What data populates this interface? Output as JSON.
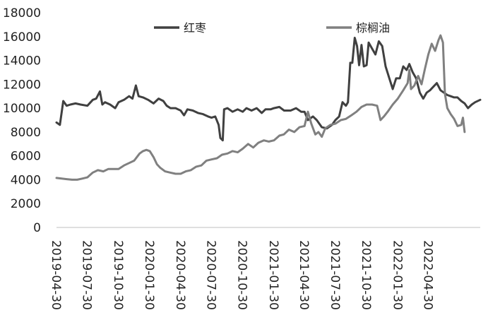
{
  "chart_data": {
    "type": "line",
    "title": "",
    "xlabel": "",
    "ylabel": "",
    "ylim": [
      0,
      18000
    ],
    "yticks": [
      "0",
      "2000",
      "4000",
      "6000",
      "8000",
      "10000",
      "12000",
      "14000",
      "16000",
      "18000"
    ],
    "xlim": [
      "2019-04-30",
      "2022-09-30"
    ],
    "xticks": [
      "2019-04-30",
      "2019-07-30",
      "2019-10-30",
      "2020-01-30",
      "2020-04-30",
      "2020-07-30",
      "2020-10-30",
      "2021-01-30",
      "2021-04-30",
      "2021-07-30",
      "2021-10-30",
      "2022-01-30",
      "2022-04-30"
    ],
    "grid": false,
    "legend": "top",
    "series": [
      {
        "name": "红枣",
        "color": "#404040",
        "points": [
          [
            "2019-04-30",
            8800
          ],
          [
            "2019-05-10",
            8600
          ],
          [
            "2019-05-20",
            10600
          ],
          [
            "2019-05-30",
            10200
          ],
          [
            "2019-06-10",
            10300
          ],
          [
            "2019-06-25",
            10400
          ],
          [
            "2019-07-10",
            10300
          ],
          [
            "2019-07-30",
            10200
          ],
          [
            "2019-08-15",
            10700
          ],
          [
            "2019-08-25",
            10800
          ],
          [
            "2019-09-05",
            11400
          ],
          [
            "2019-09-12",
            10300
          ],
          [
            "2019-09-20",
            10500
          ],
          [
            "2019-10-05",
            10300
          ],
          [
            "2019-10-20",
            10000
          ],
          [
            "2019-10-30",
            10500
          ],
          [
            "2019-11-15",
            10700
          ],
          [
            "2019-11-30",
            11000
          ],
          [
            "2019-12-10",
            10800
          ],
          [
            "2019-12-20",
            11900
          ],
          [
            "2019-12-28",
            11000
          ],
          [
            "2020-01-10",
            10900
          ],
          [
            "2020-01-25",
            10700
          ],
          [
            "2020-02-10",
            10400
          ],
          [
            "2020-02-25",
            10800
          ],
          [
            "2020-03-10",
            10600
          ],
          [
            "2020-03-20",
            10200
          ],
          [
            "2020-03-31",
            10000
          ],
          [
            "2020-04-15",
            10000
          ],
          [
            "2020-04-30",
            9800
          ],
          [
            "2020-05-10",
            9400
          ],
          [
            "2020-05-20",
            9900
          ],
          [
            "2020-06-05",
            9800
          ],
          [
            "2020-06-20",
            9600
          ],
          [
            "2020-07-05",
            9500
          ],
          [
            "2020-07-20",
            9300
          ],
          [
            "2020-07-30",
            9200
          ],
          [
            "2020-08-10",
            9300
          ],
          [
            "2020-08-20",
            8600
          ],
          [
            "2020-08-25",
            7500
          ],
          [
            "2020-09-01",
            7300
          ],
          [
            "2020-09-05",
            9900
          ],
          [
            "2020-09-15",
            10000
          ],
          [
            "2020-09-30",
            9700
          ],
          [
            "2020-10-15",
            9900
          ],
          [
            "2020-10-30",
            9700
          ],
          [
            "2020-11-10",
            10000
          ],
          [
            "2020-11-25",
            9800
          ],
          [
            "2020-12-10",
            10000
          ],
          [
            "2020-12-25",
            9600
          ],
          [
            "2021-01-05",
            9900
          ],
          [
            "2021-01-20",
            9900
          ],
          [
            "2021-01-30",
            10000
          ],
          [
            "2021-02-15",
            10100
          ],
          [
            "2021-03-01",
            9800
          ],
          [
            "2021-03-20",
            9800
          ],
          [
            "2021-04-05",
            10000
          ],
          [
            "2021-04-20",
            9700
          ],
          [
            "2021-04-30",
            9700
          ],
          [
            "2021-05-10",
            9000
          ],
          [
            "2021-05-25",
            9300
          ],
          [
            "2021-06-05",
            9000
          ],
          [
            "2021-06-20",
            8400
          ],
          [
            "2021-07-05",
            8300
          ],
          [
            "2021-07-20",
            8600
          ],
          [
            "2021-07-30",
            9000
          ],
          [
            "2021-08-10",
            9300
          ],
          [
            "2021-08-20",
            10500
          ],
          [
            "2021-08-30",
            10200
          ],
          [
            "2021-09-05",
            10500
          ],
          [
            "2021-09-12",
            13800
          ],
          [
            "2021-09-18",
            13800
          ],
          [
            "2021-09-25",
            15900
          ],
          [
            "2021-10-02",
            15200
          ],
          [
            "2021-10-08",
            13600
          ],
          [
            "2021-10-15",
            15300
          ],
          [
            "2021-10-22",
            13500
          ],
          [
            "2021-10-30",
            13600
          ],
          [
            "2021-11-05",
            15500
          ],
          [
            "2021-11-15",
            15000
          ],
          [
            "2021-11-25",
            14500
          ],
          [
            "2021-12-05",
            15600
          ],
          [
            "2021-12-15",
            15200
          ],
          [
            "2021-12-25",
            13500
          ],
          [
            "2022-01-05",
            12500
          ],
          [
            "2022-01-15",
            11600
          ],
          [
            "2022-01-25",
            12500
          ],
          [
            "2022-02-05",
            12500
          ],
          [
            "2022-02-15",
            13500
          ],
          [
            "2022-02-25",
            13200
          ],
          [
            "2022-03-05",
            13700
          ],
          [
            "2022-03-15",
            13000
          ],
          [
            "2022-03-25",
            12500
          ],
          [
            "2022-04-05",
            11300
          ],
          [
            "2022-04-15",
            10800
          ],
          [
            "2022-04-25",
            11300
          ],
          [
            "2022-05-05",
            11500
          ],
          [
            "2022-05-15",
            11800
          ],
          [
            "2022-05-25",
            12100
          ],
          [
            "2022-06-05",
            11500
          ],
          [
            "2022-06-15",
            11300
          ],
          [
            "2022-06-25",
            11100
          ],
          [
            "2022-07-05",
            11000
          ],
          [
            "2022-07-15",
            10900
          ],
          [
            "2022-07-25",
            10900
          ],
          [
            "2022-08-05",
            10600
          ],
          [
            "2022-08-15",
            10400
          ],
          [
            "2022-08-25",
            10000
          ],
          [
            "2022-09-05",
            10300
          ],
          [
            "2022-09-15",
            10500
          ],
          [
            "2022-09-30",
            10700
          ]
        ]
      },
      {
        "name": "棕榈油",
        "color": "#808080",
        "points": [
          [
            "2019-04-30",
            4150
          ],
          [
            "2019-05-15",
            4100
          ],
          [
            "2019-05-30",
            4050
          ],
          [
            "2019-06-15",
            4000
          ],
          [
            "2019-06-30",
            4000
          ],
          [
            "2019-07-15",
            4100
          ],
          [
            "2019-07-30",
            4200
          ],
          [
            "2019-08-15",
            4600
          ],
          [
            "2019-08-30",
            4800
          ],
          [
            "2019-09-15",
            4700
          ],
          [
            "2019-09-30",
            4900
          ],
          [
            "2019-10-15",
            4900
          ],
          [
            "2019-10-30",
            4900
          ],
          [
            "2019-11-15",
            5200
          ],
          [
            "2019-11-30",
            5400
          ],
          [
            "2019-12-15",
            5600
          ],
          [
            "2019-12-31",
            6200
          ],
          [
            "2020-01-10",
            6400
          ],
          [
            "2020-01-20",
            6500
          ],
          [
            "2020-01-30",
            6400
          ],
          [
            "2020-02-10",
            5900
          ],
          [
            "2020-02-20",
            5300
          ],
          [
            "2020-03-01",
            5000
          ],
          [
            "2020-03-15",
            4700
          ],
          [
            "2020-03-30",
            4600
          ],
          [
            "2020-04-15",
            4500
          ],
          [
            "2020-04-30",
            4500
          ],
          [
            "2020-05-15",
            4700
          ],
          [
            "2020-05-30",
            4800
          ],
          [
            "2020-06-15",
            5100
          ],
          [
            "2020-06-30",
            5200
          ],
          [
            "2020-07-15",
            5600
          ],
          [
            "2020-07-30",
            5700
          ],
          [
            "2020-08-15",
            5800
          ],
          [
            "2020-08-30",
            6100
          ],
          [
            "2020-09-15",
            6200
          ],
          [
            "2020-09-30",
            6400
          ],
          [
            "2020-10-15",
            6300
          ],
          [
            "2020-10-30",
            6600
          ],
          [
            "2020-11-15",
            7000
          ],
          [
            "2020-11-30",
            6700
          ],
          [
            "2020-12-15",
            7100
          ],
          [
            "2020-12-31",
            7300
          ],
          [
            "2021-01-15",
            7200
          ],
          [
            "2021-01-30",
            7300
          ],
          [
            "2021-02-15",
            7700
          ],
          [
            "2021-02-28",
            7800
          ],
          [
            "2021-03-15",
            8200
          ],
          [
            "2021-03-31",
            8000
          ],
          [
            "2021-04-15",
            8400
          ],
          [
            "2021-04-30",
            8500
          ],
          [
            "2021-05-10",
            9700
          ],
          [
            "2021-05-20",
            8700
          ],
          [
            "2021-06-01",
            7800
          ],
          [
            "2021-06-10",
            8000
          ],
          [
            "2021-06-20",
            7600
          ],
          [
            "2021-06-30",
            8300
          ],
          [
            "2021-07-15",
            8600
          ],
          [
            "2021-07-30",
            8700
          ],
          [
            "2021-08-15",
            9000
          ],
          [
            "2021-08-30",
            9100
          ],
          [
            "2021-09-15",
            9400
          ],
          [
            "2021-09-30",
            9700
          ],
          [
            "2021-10-15",
            10100
          ],
          [
            "2021-10-30",
            10300
          ],
          [
            "2021-11-15",
            10300
          ],
          [
            "2021-11-30",
            10200
          ],
          [
            "2021-12-10",
            9000
          ],
          [
            "2021-12-20",
            9300
          ],
          [
            "2021-12-31",
            9700
          ],
          [
            "2022-01-15",
            10300
          ],
          [
            "2022-01-30",
            10800
          ],
          [
            "2022-02-15",
            11500
          ],
          [
            "2022-02-28",
            12100
          ],
          [
            "2022-03-05",
            13200
          ],
          [
            "2022-03-10",
            11600
          ],
          [
            "2022-03-20",
            11900
          ],
          [
            "2022-03-31",
            12700
          ],
          [
            "2022-04-10",
            12000
          ],
          [
            "2022-04-20",
            13300
          ],
          [
            "2022-04-30",
            14500
          ],
          [
            "2022-05-10",
            15400
          ],
          [
            "2022-05-20",
            14800
          ],
          [
            "2022-05-30",
            15700
          ],
          [
            "2022-06-05",
            16100
          ],
          [
            "2022-06-12",
            15500
          ],
          [
            "2022-06-18",
            11200
          ],
          [
            "2022-06-25",
            10000
          ],
          [
            "2022-07-05",
            9500
          ],
          [
            "2022-07-15",
            9100
          ],
          [
            "2022-07-25",
            8500
          ],
          [
            "2022-08-05",
            8600
          ],
          [
            "2022-08-10",
            9200
          ],
          [
            "2022-08-15",
            8000
          ]
        ]
      }
    ]
  }
}
